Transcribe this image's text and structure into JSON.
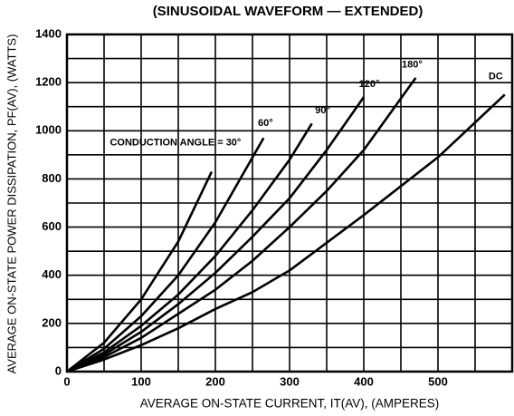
{
  "chart_data": {
    "type": "line",
    "title": "(SINUSOIDAL WAVEFORM — EXTENDED)",
    "xlabel": "AVERAGE ON-STATE CURRENT, IT(AV), (AMPERES)",
    "ylabel": "AVERAGE ON-STATE POWER DISSIPATION, PF(AV), (WATTS)",
    "xlim": [
      0,
      600
    ],
    "ylim": [
      0,
      1400
    ],
    "xticks": [
      0,
      100,
      200,
      300,
      400,
      500
    ],
    "yticks": [
      0,
      200,
      400,
      600,
      800,
      1000,
      1200,
      1400
    ],
    "x_minor_ticks": [
      50,
      150,
      250,
      350,
      450,
      550
    ],
    "y_minor_ticks": [
      100,
      300,
      500,
      700,
      900,
      1100,
      1300
    ],
    "grid": true,
    "series": [
      {
        "name": "CONDUCTION ANGLE = 30°",
        "color": "#000000",
        "x": [
          0,
          50,
          100,
          150,
          195
        ],
        "values": [
          0,
          120,
          300,
          540,
          830
        ]
      },
      {
        "name": "60°",
        "color": "#000000",
        "x": [
          0,
          50,
          100,
          150,
          200,
          265
        ],
        "values": [
          0,
          95,
          230,
          400,
          620,
          970
        ]
      },
      {
        "name": "90°",
        "color": "#000000",
        "x": [
          0,
          50,
          100,
          150,
          200,
          250,
          300,
          330
        ],
        "values": [
          0,
          80,
          190,
          320,
          480,
          670,
          880,
          1030
        ]
      },
      {
        "name": "120°",
        "color": "#000000",
        "x": [
          0,
          50,
          100,
          150,
          200,
          250,
          300,
          350,
          400
        ],
        "values": [
          0,
          70,
          165,
          280,
          410,
          560,
          720,
          920,
          1140
        ]
      },
      {
        "name": "180°",
        "color": "#000000",
        "x": [
          0,
          50,
          100,
          150,
          200,
          250,
          300,
          350,
          400,
          470
        ],
        "values": [
          0,
          60,
          140,
          240,
          340,
          460,
          600,
          750,
          920,
          1220
        ]
      },
      {
        "name": "DC",
        "color": "#000000",
        "x": [
          0,
          50,
          100,
          150,
          200,
          250,
          300,
          400,
          500,
          590
        ],
        "values": [
          0,
          50,
          110,
          180,
          260,
          330,
          420,
          650,
          890,
          1150
        ]
      }
    ]
  }
}
